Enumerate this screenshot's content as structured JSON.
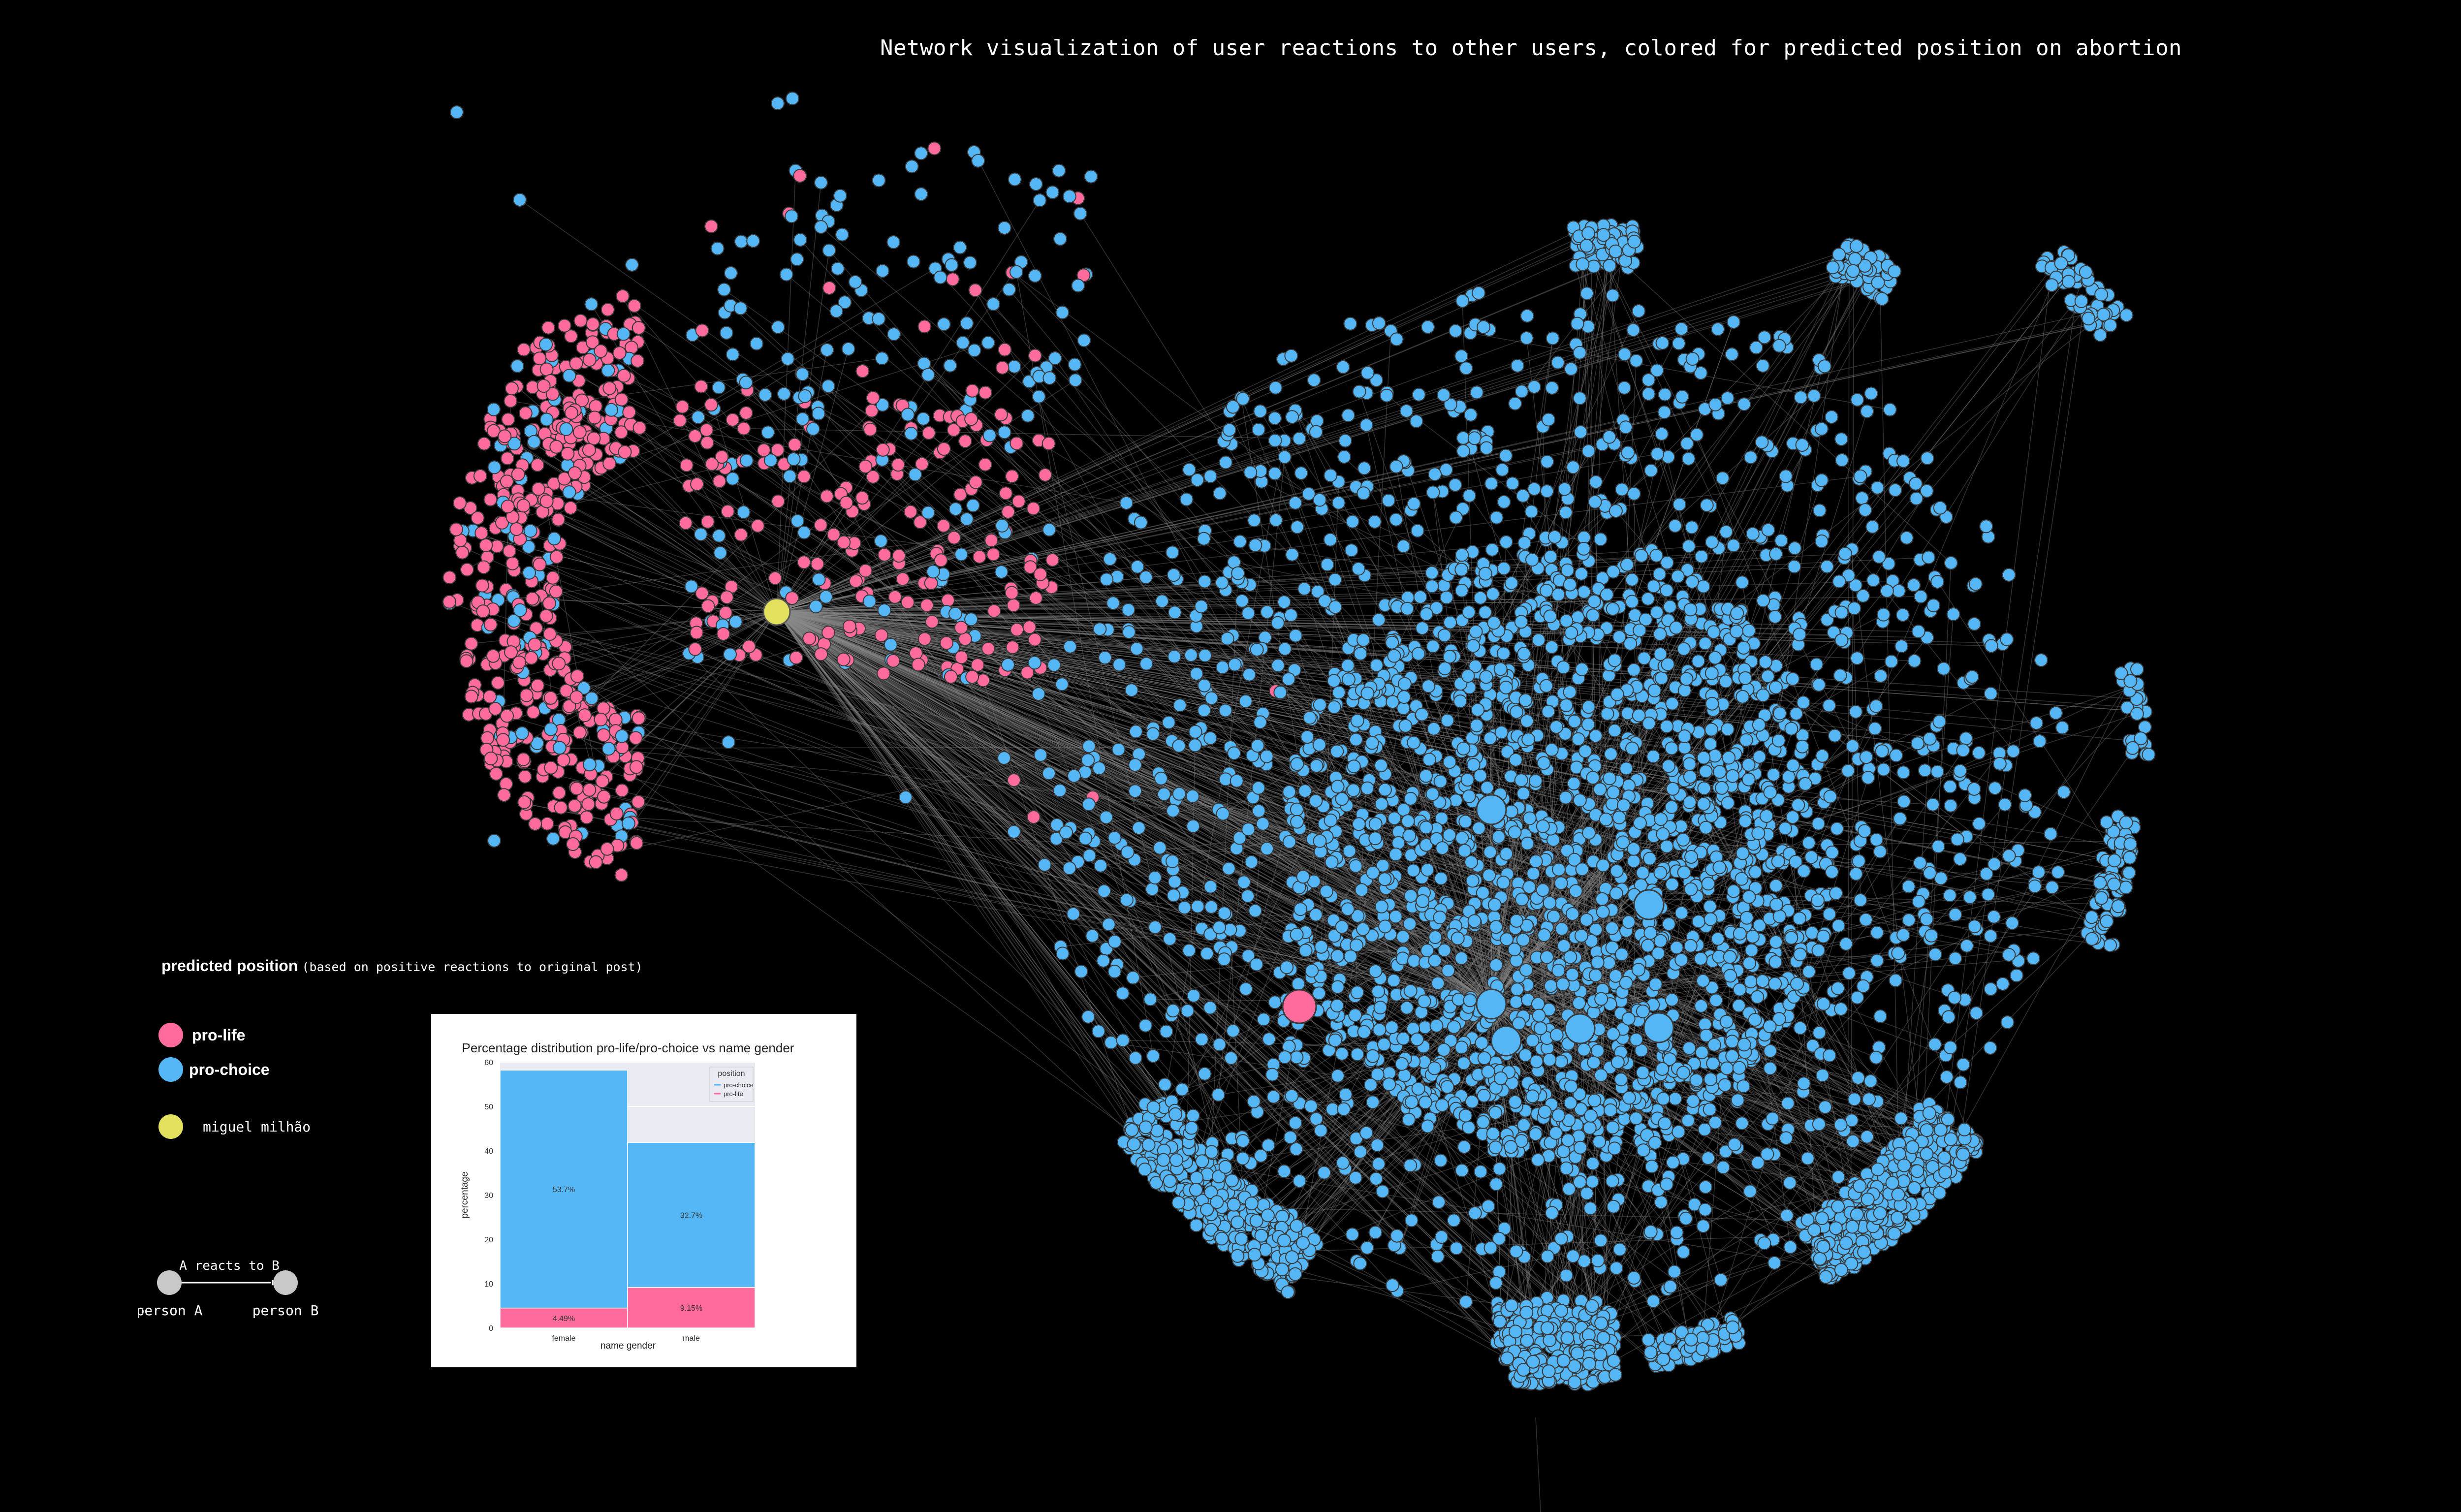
{
  "title": "Network visualization of user reactions to other users, colored for predicted position on abortion",
  "colors": {
    "background": "#000000",
    "pro_life": "#ff6b9d",
    "pro_choice": "#55b6f5",
    "miguel": "#e3e05e",
    "edge": "#8a8a8a",
    "example_node": "#c8c8c8"
  },
  "legend": {
    "heading": "predicted position",
    "heading_note": "(based on positive reactions to original post)",
    "items": [
      {
        "label": "pro-life",
        "color": "#ff6b9d"
      },
      {
        "label": "pro-choice",
        "color": "#55b6f5"
      },
      {
        "label": "miguel milhão",
        "color": "#e3e05e"
      }
    ]
  },
  "edge_example": {
    "edge_label": "A reacts to B",
    "node_a_label": "person A",
    "node_b_label": "person B"
  },
  "chart_data": {
    "type": "bar",
    "title": "Percentage distribution pro-life/pro-choice vs name gender",
    "xlabel": "name gender",
    "ylabel": "percentage",
    "categories": [
      "female",
      "male"
    ],
    "stacked": true,
    "legend_title": "position",
    "legend_placement": "top-right",
    "ylim": [
      0,
      60
    ],
    "yticks": [
      0,
      10,
      20,
      30,
      40,
      50,
      60
    ],
    "series": [
      {
        "name": "pro-life",
        "values": [
          4.49,
          9.15
        ],
        "labels": [
          "4.49%",
          "9.15%"
        ],
        "color": "#ff6b9d"
      },
      {
        "name": "pro-choice",
        "values": [
          53.7,
          32.7
        ],
        "labels": [
          "53.7%",
          "32.7%"
        ],
        "color": "#55b6f5"
      }
    ]
  }
}
